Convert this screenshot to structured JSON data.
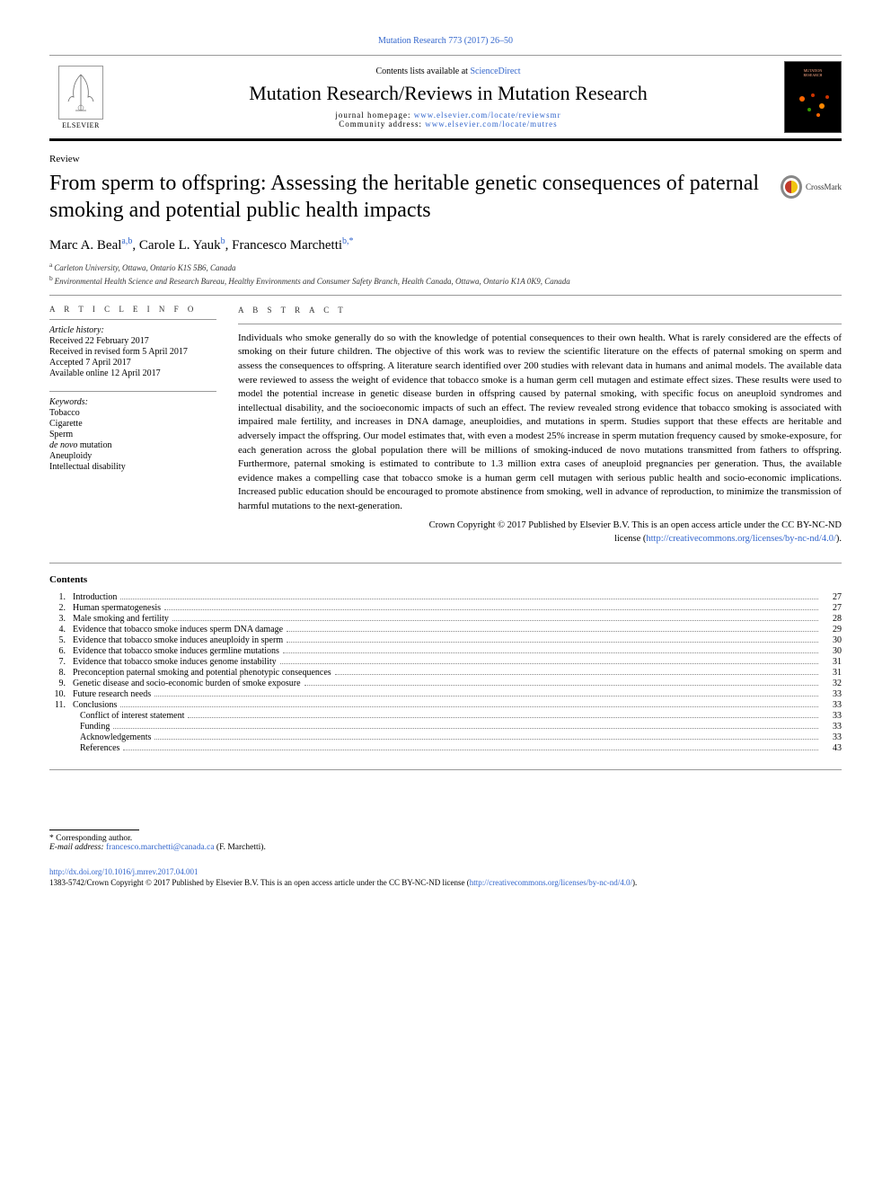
{
  "header": {
    "citation": "Mutation Research 773 (2017) 26–50",
    "contents_at": "Contents lists available at ",
    "sciencedirect": "ScienceDirect",
    "journal_name": "Mutation Research/Reviews in Mutation Research",
    "homepage_label": "journal homepage: ",
    "homepage_url": "www.elsevier.com/locate/reviewsmr",
    "community_label": "Community address: ",
    "community_url": "www.elsevier.com/locate/mutres",
    "elsevier": "ELSEVIER",
    "cover_text": "MUTATION RESEARCH"
  },
  "article": {
    "type": "Review",
    "title": "From sperm to offspring: Assessing the heritable genetic consequences of paternal smoking and potential public health impacts",
    "crossmark": "CrossMark",
    "authors_html": "Marc A. Beal<sup>a,b</sup>, Carole L. Yauk<sup>b</sup>, Francesco Marchetti<sup>b,*</sup>",
    "authors": [
      {
        "name": "Marc A. Beal",
        "sup": "a,b"
      },
      {
        "name": "Carole L. Yauk",
        "sup": "b"
      },
      {
        "name": "Francesco Marchetti",
        "sup": "b,*"
      }
    ],
    "affiliations": [
      {
        "sup": "a",
        "text": "Carleton University, Ottawa, Ontario K1S 5B6, Canada"
      },
      {
        "sup": "b",
        "text": "Environmental Health Science and Research Bureau, Healthy Environments and Consumer Safety Branch, Health Canada, Ottawa, Ontario K1A 0K9, Canada"
      }
    ]
  },
  "info": {
    "head": "A R T I C L E  I N F O",
    "history_label": "Article history:",
    "history": [
      "Received 22 February 2017",
      "Received in revised form 5 April 2017",
      "Accepted 7 April 2017",
      "Available online 12 April 2017"
    ],
    "keywords_label": "Keywords:",
    "keywords": [
      "Tobacco",
      "Cigarette",
      "Sperm",
      "de novo mutation",
      "Aneuploidy",
      "Intellectual disability"
    ]
  },
  "abstract": {
    "head": "A B S T R A C T",
    "body": "Individuals who smoke generally do so with the knowledge of potential consequences to their own health. What is rarely considered are the effects of smoking on their future children. The objective of this work was to review the scientific literature on the effects of paternal smoking on sperm and assess the consequences to offspring. A literature search identified over 200 studies with relevant data in humans and animal models. The available data were reviewed to assess the weight of evidence that tobacco smoke is a human germ cell mutagen and estimate effect sizes. These results were used to model the potential increase in genetic disease burden in offspring caused by paternal smoking, with specific focus on aneuploid syndromes and intellectual disability, and the socioeconomic impacts of such an effect. The review revealed strong evidence that tobacco smoking is associated with impaired male fertility, and increases in DNA damage, aneuploidies, and mutations in sperm. Studies support that these effects are heritable and adversely impact the offspring. Our model estimates that, with even a modest 25% increase in sperm mutation frequency caused by smoke-exposure, for each generation across the global population there will be millions of smoking-induced de novo mutations transmitted from fathers to offspring. Furthermore, paternal smoking is estimated to contribute to 1.3 million extra cases of aneuploid pregnancies per generation. Thus, the available evidence makes a compelling case that tobacco smoke is a human germ cell mutagen with serious public health and socio-economic implications. Increased public education should be encouraged to promote abstinence from smoking, well in advance of reproduction, to minimize the transmission of harmful mutations to the next-generation.",
    "copyright_line1": "Crown Copyright © 2017 Published by Elsevier B.V. This is an open access article under the CC BY-NC-ND",
    "copyright_line2": "license (",
    "license_url": "http://creativecommons.org/licenses/by-nc-nd/4.0/",
    "copyright_close": ")."
  },
  "contents": {
    "head": "Contents",
    "items": [
      {
        "num": "1.",
        "title": "Introduction",
        "page": "27"
      },
      {
        "num": "2.",
        "title": "Human spermatogenesis",
        "page": "27"
      },
      {
        "num": "3.",
        "title": "Male smoking and fertility",
        "page": "28"
      },
      {
        "num": "4.",
        "title": "Evidence that tobacco smoke induces sperm DNA damage",
        "page": "29"
      },
      {
        "num": "5.",
        "title": "Evidence that tobacco smoke induces aneuploidy in sperm",
        "page": "30"
      },
      {
        "num": "6.",
        "title": "Evidence that tobacco smoke induces germline mutations",
        "page": "30"
      },
      {
        "num": "7.",
        "title": "Evidence that tobacco smoke induces genome instability",
        "page": "31"
      },
      {
        "num": "8.",
        "title": "Preconception paternal smoking and potential phenotypic consequences",
        "page": "31"
      },
      {
        "num": "9.",
        "title": "Genetic disease and socio-economic burden of smoke exposure",
        "page": "32"
      },
      {
        "num": "10.",
        "title": "Future research needs",
        "page": "33"
      },
      {
        "num": "11.",
        "title": "Conclusions",
        "page": "33"
      },
      {
        "num": "",
        "title": "Conflict of interest statement",
        "page": "33"
      },
      {
        "num": "",
        "title": "Funding",
        "page": "33"
      },
      {
        "num": "",
        "title": "Acknowledgements",
        "page": "33"
      },
      {
        "num": "",
        "title": "References",
        "page": "43"
      }
    ]
  },
  "footer": {
    "corresponding": "* Corresponding author.",
    "email_label": "E-mail address: ",
    "email": "francesco.marchetti@canada.ca",
    "email_attrib": " (F. Marchetti).",
    "doi": "http://dx.doi.org/10.1016/j.mrrev.2017.04.001",
    "issn_line": "1383-5742/Crown Copyright © 2017 Published by Elsevier B.V. This is an open access article under the CC BY-NC-ND license (",
    "license_url": "http://creativecommons.org/licenses/by-nc-nd/4.0/",
    "issn_close": ")."
  },
  "colors": {
    "link": "#3366cc",
    "text": "#000000",
    "rule": "#999999",
    "black_bar": "#000000"
  },
  "typography": {
    "title_fontsize": 24,
    "journal_fontsize": 22,
    "body_fontsize": 11,
    "info_fontsize": 10,
    "toc_fontsize": 10,
    "footer_fontsize": 9.5
  }
}
